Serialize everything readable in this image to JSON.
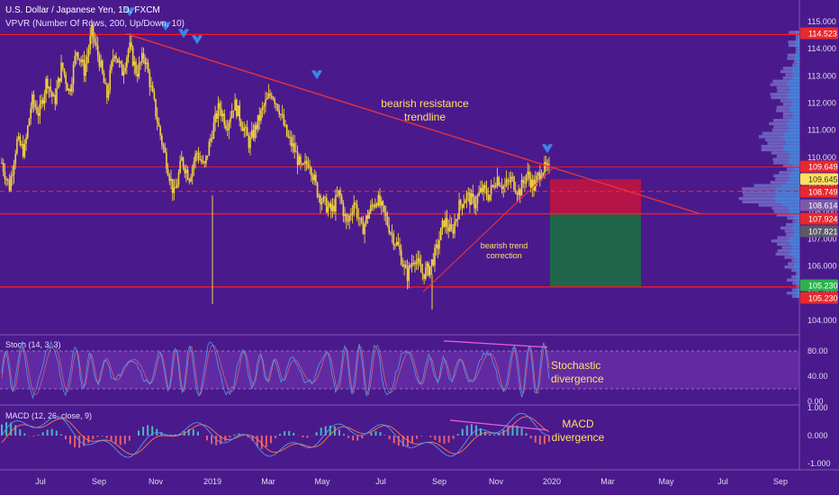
{
  "header": {
    "title": "U.S. Dollar / Japanese Yen, 1D, FXCM",
    "vpvr": "VPVR (Number Of Rows, 200, Up/Down, 10)"
  },
  "colors": {
    "background": "#4a1a8c",
    "candle": "#f2d23c",
    "level_line": "#ff1a1a",
    "trendline": "#e8323c",
    "annotation": "#ffe066",
    "arrow": "#3a86e8",
    "stop_zone": "#c8143c",
    "target_zone": "#1e6e46",
    "stoch_k": "#4c9df0",
    "stoch_d": "#e07070",
    "divergence": "#e85ad0",
    "macd": "#4c9df0",
    "signal": "#ff7a3c",
    "hist_pos": "#4dd0c8",
    "hist_neg": "#ff6b6b"
  },
  "annotations": {
    "resistance": [
      "bearish resistance",
      "trendline"
    ],
    "correction": [
      "bearish trend",
      "correction"
    ],
    "stoch_div": [
      "Stochastic",
      "divergence"
    ],
    "macd_div": [
      "MACD",
      "divergence"
    ]
  },
  "chart_data": [
    {
      "type": "candlestick",
      "title": "U.S. Dollar / Japanese Yen, 1D, FXCM",
      "series_path": [
        [
          0,
          109.8
        ],
        [
          0.03,
          108.9
        ],
        [
          0.06,
          110.6
        ],
        [
          0.09,
          110.2
        ],
        [
          0.12,
          112.1
        ],
        [
          0.15,
          111.6
        ],
        [
          0.18,
          112.9
        ],
        [
          0.21,
          112.0
        ],
        [
          0.24,
          113.4
        ],
        [
          0.27,
          112.4
        ],
        [
          0.3,
          114.0
        ],
        [
          0.33,
          113.2
        ],
        [
          0.36,
          114.6
        ],
        [
          0.39,
          113.6
        ],
        [
          0.42,
          112.2
        ],
        [
          0.45,
          114.0
        ],
        [
          0.48,
          113.1
        ],
        [
          0.51,
          114.1
        ],
        [
          0.54,
          113.1
        ],
        [
          0.57,
          113.8
        ],
        [
          0.6,
          112.4
        ],
        [
          0.63,
          111.0
        ],
        [
          0.66,
          109.8
        ],
        [
          0.69,
          108.6
        ],
        [
          0.72,
          109.9
        ],
        [
          0.75,
          109.3
        ],
        [
          0.78,
          110.2
        ],
        [
          0.81,
          109.6
        ],
        [
          0.84,
          110.9
        ],
        [
          0.87,
          111.9
        ],
        [
          0.9,
          111.2
        ],
        [
          0.93,
          112.0
        ],
        [
          0.96,
          111.3
        ],
        [
          0.99,
          110.5
        ],
        [
          1.02,
          111.2
        ],
        [
          1.05,
          111.9
        ],
        [
          1.08,
          112.4
        ],
        [
          1.11,
          111.8
        ],
        [
          1.14,
          110.8
        ],
        [
          1.17,
          110.3
        ],
        [
          1.2,
          109.5
        ],
        [
          1.23,
          109.9
        ],
        [
          1.26,
          108.8
        ],
        [
          1.29,
          108.3
        ],
        [
          1.32,
          108.0
        ],
        [
          1.35,
          108.7
        ],
        [
          1.38,
          107.5
        ],
        [
          1.41,
          108.4
        ],
        [
          1.44,
          107.3
        ],
        [
          1.47,
          108.0
        ],
        [
          1.5,
          108.5
        ],
        [
          1.53,
          107.9
        ],
        [
          1.56,
          107.2
        ],
        [
          1.59,
          106.6
        ],
        [
          1.62,
          105.6
        ],
        [
          1.65,
          106.4
        ],
        [
          1.68,
          105.7
        ],
        [
          1.71,
          105.9
        ],
        [
          1.74,
          106.6
        ],
        [
          1.77,
          107.7
        ],
        [
          1.8,
          107.2
        ],
        [
          1.83,
          108.2
        ],
        [
          1.86,
          108.6
        ],
        [
          1.89,
          108.3
        ],
        [
          1.92,
          108.8
        ],
        [
          1.95,
          108.6
        ],
        [
          1.98,
          109.3
        ],
        [
          2.01,
          108.9
        ],
        [
          2.04,
          109.2
        ],
        [
          2.07,
          108.7
        ],
        [
          2.1,
          109.4
        ],
        [
          2.13,
          108.9
        ],
        [
          2.16,
          109.6
        ],
        [
          2.19,
          109.5
        ]
      ],
      "price_labels": [
        "115.000",
        "114.000",
        "113.000",
        "112.000",
        "111.000",
        "110.000",
        "109.000",
        "108.000",
        "107.000",
        "106.000",
        "105.000",
        "104.000"
      ],
      "price_tags": [
        {
          "label": "114.523",
          "value": 114.523,
          "bg": "#e8282d",
          "fg": "#ffffff"
        },
        {
          "label": "109.649",
          "value": 109.649,
          "bg": "#e8282d",
          "fg": "#ffffff"
        },
        {
          "label": "109.645",
          "value": 109.645,
          "bg": "#ffe35a",
          "fg": "#333333"
        },
        {
          "label": "108.749",
          "value": 108.749,
          "bg": "#e8282d",
          "fg": "#ffffff"
        },
        {
          "label": "108.614",
          "value": 108.614,
          "bg": "#7a5aa8",
          "fg": "#ffffff"
        },
        {
          "label": "107.924",
          "value": 107.924,
          "bg": "#e8282d",
          "fg": "#ffffff"
        },
        {
          "label": "107.821",
          "value": 107.821,
          "bg": "#5a5a6a",
          "fg": "#ffffff"
        },
        {
          "label": "105.230",
          "value": 105.23,
          "bg": "#2ab34a",
          "fg": "#ffffff"
        },
        {
          "label": "105.230",
          "value": 105.23,
          "bg": "#e8282d",
          "fg": "#ffffff"
        }
      ],
      "levels": [
        {
          "value": 114.523,
          "style": "solid"
        },
        {
          "value": 109.649,
          "style": "solid-thin"
        },
        {
          "value": 108.749,
          "style": "dashed"
        },
        {
          "value": 107.924,
          "style": "solid"
        },
        {
          "value": 105.23,
          "style": "solid"
        }
      ],
      "resistance_line": {
        "from": [
          "Sep 2018",
          114.55
        ],
        "to": [
          "Jun 2020",
          107.92
        ]
      },
      "support_line": {
        "from": [
          "Aug 2019",
          105.1
        ],
        "to": [
          "Dec 2019",
          109.65
        ]
      },
      "position": {
        "entry": 108.749,
        "stop": 109.0,
        "target": 105.23,
        "stop_bottom": 107.924
      },
      "arrows": [
        "Oct 2018",
        "Nov 2018",
        "Dec 2018",
        "May 2019",
        "Dec 2019"
      ]
    },
    {
      "type": "line",
      "title": "Stoch (14, 3, 3)",
      "y_labels": [
        "80.00",
        "40.00",
        "0.00"
      ],
      "levels": [
        80,
        20
      ],
      "divergence": {
        "from": 95,
        "to": 85
      }
    },
    {
      "type": "line",
      "title": "MACD (12, 26, close, 9)",
      "y_labels": [
        "1.000",
        "0.000",
        "-1.000"
      ]
    }
  ],
  "x_axis": {
    "labels": [
      "Jul",
      "Sep",
      "Nov",
      "2019",
      "Mar",
      "May",
      "Jul",
      "Sep",
      "Nov",
      "2020",
      "Mar",
      "May",
      "Jul",
      "Sep"
    ]
  }
}
